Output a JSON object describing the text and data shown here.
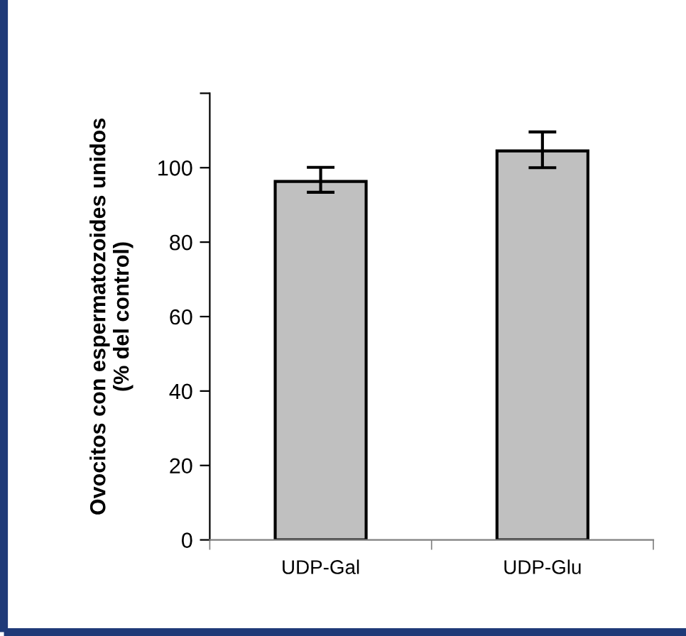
{
  "chart_data": {
    "type": "bar",
    "ylabel": "Ovocitos con espermatozoides unidos\n(% del control)",
    "categories": [
      "UDP-Gal",
      "UDP-Glu"
    ],
    "values": [
      96.3,
      104.5
    ],
    "color": "#c0c0c0",
    "errors": [
      [
        93.4,
        100.1
      ],
      [
        100,
        109.6
      ]
    ],
    "ylim": [
      0,
      120
    ],
    "yticks": [
      0,
      20,
      40,
      60,
      80,
      100,
      {
        "value": 120,
        "label": null
      }
    ],
    "grid": false
  }
}
